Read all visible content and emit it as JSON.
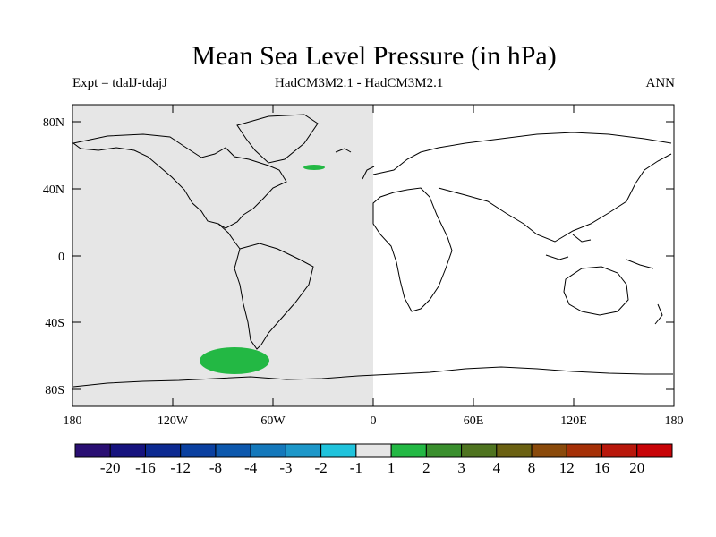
{
  "title": "Mean Sea Level Pressure (in hPa)",
  "subtitle_left": "Expt = tdalJ-tdajJ",
  "subtitle_center": "HadCM3M2.1 - HadCM3M2.1",
  "subtitle_right": "ANN",
  "axes": {
    "lat_ticks": [
      "80N",
      "40N",
      "0",
      "40S",
      "80S"
    ],
    "lon_ticks": [
      "180",
      "120W",
      "60W",
      "0",
      "60E",
      "120E",
      "180"
    ]
  },
  "colorbar": {
    "labels": [
      "-20",
      "-16",
      "-12",
      "-8",
      "-4",
      "-3",
      "-2",
      "-1",
      "1",
      "2",
      "3",
      "4",
      "8",
      "12",
      "16",
      "20"
    ],
    "colors": [
      "#2a0f73",
      "#16137e",
      "#0c2a91",
      "#0a40a0",
      "#0d58ad",
      "#1478bb",
      "#1d97c9",
      "#20c3dc",
      "#e6e6e6",
      "#23b844",
      "#3a8f2e",
      "#4f7420",
      "#6b6112",
      "#8a4a0b",
      "#a53007",
      "#b8170b",
      "#c80408"
    ]
  },
  "map": {
    "shaded_value_range": "-1 to 1",
    "positive_regions": [
      "North Atlantic east of Greenland",
      "South Pacific near Antarctica"
    ]
  }
}
